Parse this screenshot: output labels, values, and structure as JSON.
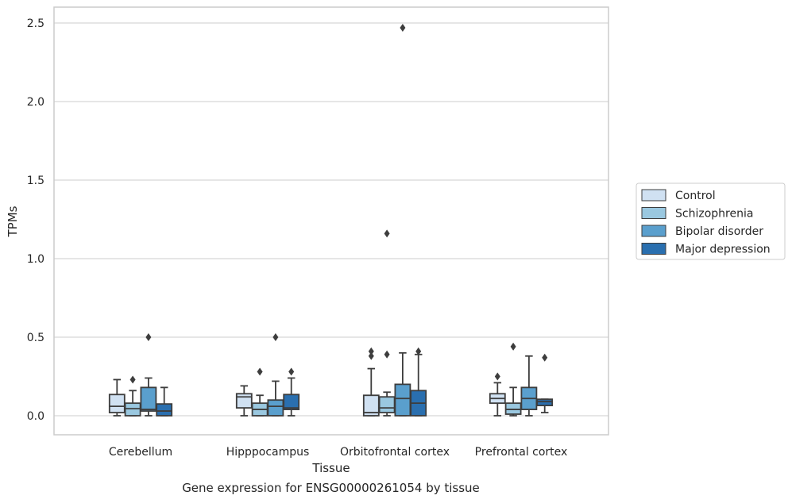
{
  "chart_data": {
    "type": "box",
    "xlabel": "Tissue",
    "ylabel": "TPMs",
    "ylim": [
      -0.12,
      2.6
    ],
    "yticks": [
      0.0,
      0.5,
      1.0,
      1.5,
      2.0,
      2.5
    ],
    "ytick_labels": [
      "0.0",
      "0.5",
      "1.0",
      "1.5",
      "2.0",
      "2.5"
    ],
    "categories": [
      "Cerebellum",
      "Hipppocampus",
      "Orbitofrontal cortex",
      "Prefrontal cortex"
    ],
    "grid": "horizontal",
    "legend_position": "right",
    "series": [
      {
        "name": "Control",
        "color": "#d0e1f2",
        "boxes": [
          {
            "whislo": 0.0,
            "q1": 0.02,
            "med": 0.06,
            "q3": 0.135,
            "whishi": 0.23,
            "fliers": []
          },
          {
            "whislo": 0.0,
            "q1": 0.05,
            "med": 0.12,
            "q3": 0.14,
            "whishi": 0.19,
            "fliers": []
          },
          {
            "whislo": 0.0,
            "q1": 0.0,
            "med": 0.02,
            "q3": 0.13,
            "whishi": 0.3,
            "fliers": [
              0.38,
              0.41
            ]
          },
          {
            "whislo": 0.0,
            "q1": 0.08,
            "med": 0.11,
            "q3": 0.14,
            "whishi": 0.21,
            "fliers": [
              0.25
            ]
          }
        ]
      },
      {
        "name": "Schizophrenia",
        "color": "#9ac8e0",
        "boxes": [
          {
            "whislo": 0.0,
            "q1": 0.0,
            "med": 0.045,
            "q3": 0.08,
            "whishi": 0.16,
            "fliers": [
              0.23
            ]
          },
          {
            "whislo": 0.0,
            "q1": 0.0,
            "med": 0.04,
            "q3": 0.08,
            "whishi": 0.13,
            "fliers": [
              0.28
            ]
          },
          {
            "whislo": 0.0,
            "q1": 0.02,
            "med": 0.05,
            "q3": 0.12,
            "whishi": 0.15,
            "fliers": [
              0.39,
              1.16
            ]
          },
          {
            "whislo": 0.0,
            "q1": 0.01,
            "med": 0.04,
            "q3": 0.08,
            "whishi": 0.18,
            "fliers": [
              0.44
            ]
          }
        ]
      },
      {
        "name": "Bipolar disorder",
        "color": "#5a9fcd",
        "boxes": [
          {
            "whislo": 0.0,
            "q1": 0.03,
            "med": 0.04,
            "q3": 0.18,
            "whishi": 0.24,
            "fliers": [
              0.5
            ]
          },
          {
            "whislo": 0.0,
            "q1": 0.0,
            "med": 0.06,
            "q3": 0.1,
            "whishi": 0.22,
            "fliers": [
              0.5
            ]
          },
          {
            "whislo": 0.0,
            "q1": 0.0,
            "med": 0.11,
            "q3": 0.2,
            "whishi": 0.4,
            "fliers": [
              2.47
            ]
          },
          {
            "whislo": 0.0,
            "q1": 0.04,
            "med": 0.11,
            "q3": 0.18,
            "whishi": 0.38,
            "fliers": []
          }
        ]
      },
      {
        "name": "Major depression",
        "color": "#2a6faf",
        "boxes": [
          {
            "whislo": 0.0,
            "q1": 0.0,
            "med": 0.03,
            "q3": 0.075,
            "whishi": 0.18,
            "fliers": []
          },
          {
            "whislo": 0.0,
            "q1": 0.04,
            "med": 0.05,
            "q3": 0.135,
            "whishi": 0.24,
            "fliers": [
              0.28
            ]
          },
          {
            "whislo": 0.0,
            "q1": 0.0,
            "med": 0.08,
            "q3": 0.16,
            "whishi": 0.39,
            "fliers": [
              0.41
            ]
          },
          {
            "whislo": 0.02,
            "q1": 0.065,
            "med": 0.09,
            "q3": 0.105,
            "whishi": 0.105,
            "fliers": [
              0.37
            ]
          }
        ]
      }
    ]
  },
  "caption": "Gene expression for ENSG00000261054 by tissue"
}
